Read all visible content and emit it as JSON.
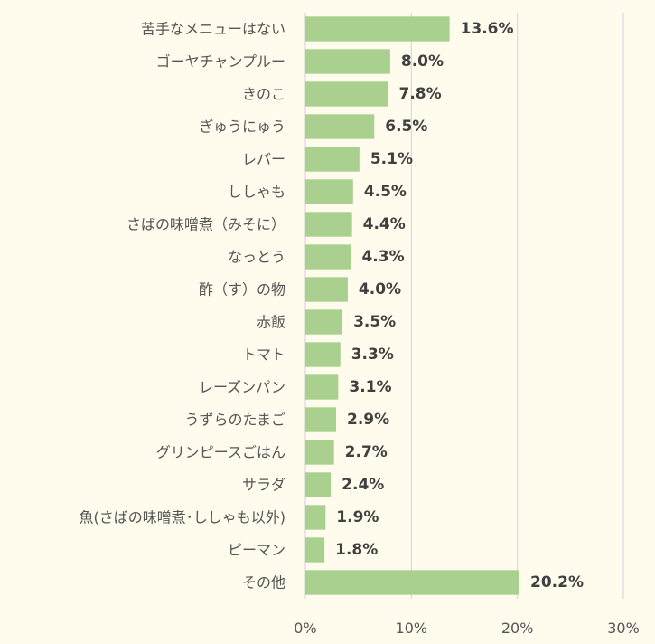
{
  "chart_data": {
    "type": "bar",
    "orientation": "horizontal",
    "categories": [
      "苦手なメニューはない",
      "ゴーヤチャンプルー",
      "きのこ",
      "ぎゅうにゅう",
      "レバー",
      "ししゃも",
      "さばの味噌煮（みそに）",
      "なっとう",
      "酢（す）の物",
      "赤飯",
      "トマト",
      "レーズンパン",
      "うずらのたまご",
      "グリンピースごはん",
      "サラダ",
      "魚(さばの味噌煮･ししゃも以外)",
      "ピーマン",
      "その他"
    ],
    "values": [
      13.6,
      8.0,
      7.8,
      6.5,
      5.1,
      4.5,
      4.4,
      4.3,
      4.0,
      3.5,
      3.3,
      3.1,
      2.9,
      2.7,
      2.4,
      1.9,
      1.8,
      20.2
    ],
    "value_labels": [
      "13.6%",
      "8.0%",
      "7.8%",
      "6.5%",
      "5.1%",
      "4.5%",
      "4.4%",
      "4.3%",
      "4.0%",
      "3.5%",
      "3.3%",
      "3.1%",
      "2.9%",
      "2.7%",
      "2.4%",
      "1.9%",
      "1.8%",
      "20.2%"
    ],
    "xlim": [
      0,
      30
    ],
    "x_ticks": [
      0,
      10,
      20,
      30
    ],
    "x_tick_labels": [
      "0%",
      "10%",
      "20%",
      "30%"
    ],
    "bar_color": "#a9d08e",
    "background_color": "#fffcee",
    "grid": true,
    "legend": "none"
  }
}
